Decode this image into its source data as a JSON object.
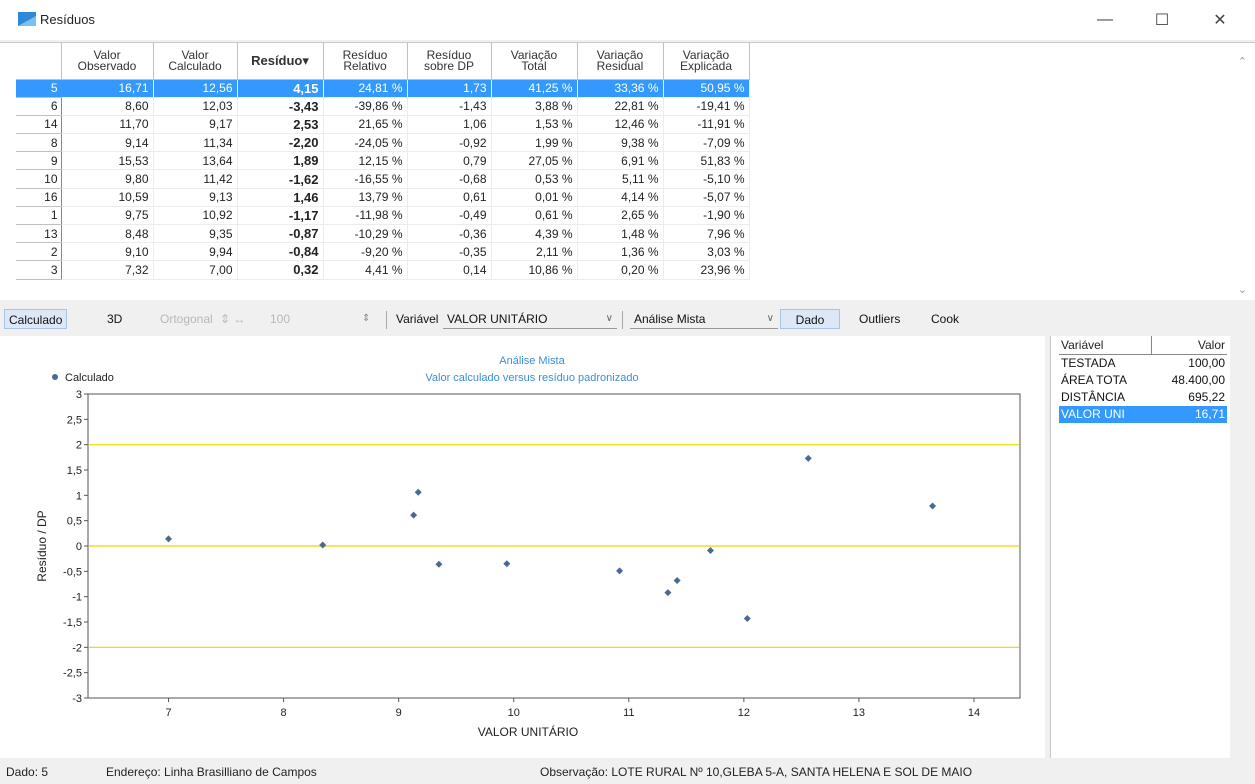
{
  "window": {
    "title": "Resíduos",
    "minimize": "—",
    "maximize": "☐",
    "close": "✕",
    "icon": "chart-icon"
  },
  "grid": {
    "columns": [
      "Valor\nObservado",
      "Valor\nCalculado",
      "Resíduo▾",
      "Resíduo\nRelativo",
      "Resíduo\nsobre DP",
      "Variação\nTotal",
      "Variação\nResidual",
      "Variação\nExplicada"
    ],
    "rows": [
      {
        "idx": "5",
        "obs": "16,71",
        "calc": "12,56",
        "res": "4,15",
        "rel": "24,81 %",
        "dp": "1,73",
        "vt": "41,25 %",
        "vr": "33,36 %",
        "ve": "50,95 %",
        "selected": true
      },
      {
        "idx": "6",
        "obs": "8,60",
        "calc": "12,03",
        "res": "-3,43",
        "rel": "-39,86 %",
        "dp": "-1,43",
        "vt": "3,88 %",
        "vr": "22,81 %",
        "ve": "-19,41 %"
      },
      {
        "idx": "14",
        "obs": "11,70",
        "calc": "9,17",
        "res": "2,53",
        "rel": "21,65 %",
        "dp": "1,06",
        "vt": "1,53 %",
        "vr": "12,46 %",
        "ve": "-11,91 %"
      },
      {
        "idx": "8",
        "obs": "9,14",
        "calc": "11,34",
        "res": "-2,20",
        "rel": "-24,05 %",
        "dp": "-0,92",
        "vt": "1,99 %",
        "vr": "9,38 %",
        "ve": "-7,09 %"
      },
      {
        "idx": "9",
        "obs": "15,53",
        "calc": "13,64",
        "res": "1,89",
        "rel": "12,15 %",
        "dp": "0,79",
        "vt": "27,05 %",
        "vr": "6,91 %",
        "ve": "51,83 %"
      },
      {
        "idx": "10",
        "obs": "9,80",
        "calc": "11,42",
        "res": "-1,62",
        "rel": "-16,55 %",
        "dp": "-0,68",
        "vt": "0,53 %",
        "vr": "5,11 %",
        "ve": "-5,10 %"
      },
      {
        "idx": "16",
        "obs": "10,59",
        "calc": "9,13",
        "res": "1,46",
        "rel": "13,79 %",
        "dp": "0,61",
        "vt": "0,01 %",
        "vr": "4,14 %",
        "ve": "-5,07 %"
      },
      {
        "idx": "1",
        "obs": "9,75",
        "calc": "10,92",
        "res": "-1,17",
        "rel": "-11,98 %",
        "dp": "-0,49",
        "vt": "0,61 %",
        "vr": "2,65 %",
        "ve": "-1,90 %"
      },
      {
        "idx": "13",
        "obs": "8,48",
        "calc": "9,35",
        "res": "-0,87",
        "rel": "-10,29 %",
        "dp": "-0,36",
        "vt": "4,39 %",
        "vr": "1,48 %",
        "ve": "7,96 %"
      },
      {
        "idx": "2",
        "obs": "9,10",
        "calc": "9,94",
        "res": "-0,84",
        "rel": "-9,20 %",
        "dp": "-0,35",
        "vt": "2,11 %",
        "vr": "1,36 %",
        "ve": "3,03 %"
      },
      {
        "idx": "3",
        "obs": "7,32",
        "calc": "7,00",
        "res": "0,32",
        "rel": "4,41 %",
        "dp": "0,14",
        "vt": "10,86 %",
        "vr": "0,20 %",
        "ve": "23,96 %"
      }
    ]
  },
  "toolbar": {
    "calculado": "Calculado",
    "three_d": "3D",
    "ortogonal": "Ortogonal",
    "ortogonal_value": "100",
    "spinner": "⇕ ↔",
    "variavel_label": "Variável",
    "variavel_value": "VALOR UNITÁRIO",
    "analise_value": "Análise Mista",
    "dado": "Dado",
    "outliers": "Outliers",
    "cook": "Cook"
  },
  "side_panel": {
    "header_var": "Variável",
    "header_val": "Valor",
    "rows": [
      {
        "name": "TESTADA",
        "value": "100,00"
      },
      {
        "name": "ÁREA TOTA",
        "value": "48.400,00"
      },
      {
        "name": "DISTÂNCIA",
        "value": "695,22"
      },
      {
        "name": "VALOR UNI",
        "value": "16,71",
        "selected": true
      }
    ]
  },
  "status": {
    "dado": "Dado: 5",
    "endereco": "Endereço: Linha Brasilliano de Campos",
    "observacao": "Observação: LOTE RURAL Nº 10,GLEBA 5-A, SANTA HELENA E SOL DE MAIO"
  },
  "chart_data": {
    "type": "scatter",
    "title": "Análise Mista",
    "subtitle": "Valor calculado versus resíduo padronizado",
    "xlabel": "VALOR UNITÁRIO",
    "ylabel": "Resíduo / DP",
    "legend": "Calculado",
    "legend_position": "top-left",
    "xlim": [
      6.3,
      14.4
    ],
    "ylim": [
      -3,
      3
    ],
    "xticks": [
      "7",
      "8",
      "9",
      "10",
      "11",
      "12",
      "13",
      "14"
    ],
    "yticks": [
      "3",
      "2,5",
      "2",
      "1,5",
      "1",
      "0,5",
      "0",
      "-0,5",
      "-1",
      "-1,5",
      "-2",
      "-2,5",
      "-3"
    ],
    "reference_lines": [
      2,
      0,
      -2
    ],
    "reference_color": "#e8d800",
    "point_color": "#4a6a94",
    "title_color": "#3a8fd8",
    "points": [
      {
        "x": 7.0,
        "y": 0.14
      },
      {
        "x": 8.34,
        "y": 0.02
      },
      {
        "x": 9.13,
        "y": 0.61
      },
      {
        "x": 9.17,
        "y": 1.06
      },
      {
        "x": 9.35,
        "y": -0.36
      },
      {
        "x": 9.94,
        "y": -0.35
      },
      {
        "x": 10.92,
        "y": -0.49
      },
      {
        "x": 11.34,
        "y": -0.92
      },
      {
        "x": 11.42,
        "y": -0.68
      },
      {
        "x": 11.71,
        "y": -0.09
      },
      {
        "x": 12.03,
        "y": -1.43
      },
      {
        "x": 12.56,
        "y": 1.73
      },
      {
        "x": 13.64,
        "y": 0.79
      }
    ]
  }
}
